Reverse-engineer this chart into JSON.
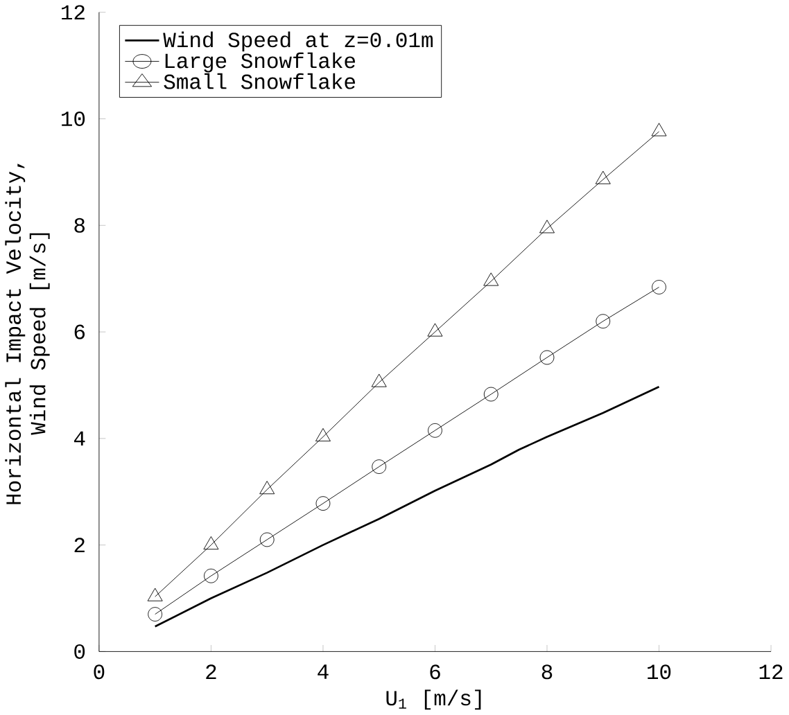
{
  "chart_data": {
    "type": "line",
    "xlabel": "U$_{1}$ [m/s]",
    "ylabel": "Horizontal Impact Velocity,\nWind Speed  [m/s]",
    "xlim": [
      0,
      12
    ],
    "ylim": [
      0,
      12
    ],
    "xticks": [
      0,
      2,
      4,
      6,
      8,
      10,
      12
    ],
    "yticks": [
      0,
      2,
      4,
      6,
      8,
      10,
      12
    ],
    "grid": false,
    "legend": "top left",
    "series": [
      {
        "name": "Wind Speed at z=0.01m",
        "color": "#000000",
        "marker": "none",
        "x": [
          1,
          2,
          3,
          4,
          5,
          6,
          7,
          7.5,
          8,
          9,
          10
        ],
        "values": [
          0.47,
          1.0,
          1.48,
          2.0,
          2.49,
          3.02,
          3.51,
          3.79,
          4.03,
          4.48,
          4.97
        ]
      },
      {
        "name": "Large Snowflake",
        "color": "#000000",
        "marker": "circle",
        "x": [
          1,
          2,
          3,
          4,
          5,
          6,
          7,
          8,
          9,
          10
        ],
        "values": [
          0.7,
          1.42,
          2.1,
          2.78,
          3.47,
          4.15,
          4.83,
          5.52,
          6.2,
          6.84
        ]
      },
      {
        "name": "Small Snowflake",
        "color": "#000000",
        "marker": "triangle",
        "x": [
          1,
          2,
          3,
          4,
          5,
          6,
          7,
          8,
          9,
          10
        ],
        "values": [
          1.03,
          2.0,
          3.04,
          4.03,
          5.05,
          6.0,
          6.95,
          7.94,
          8.86,
          9.76
        ]
      }
    ]
  }
}
